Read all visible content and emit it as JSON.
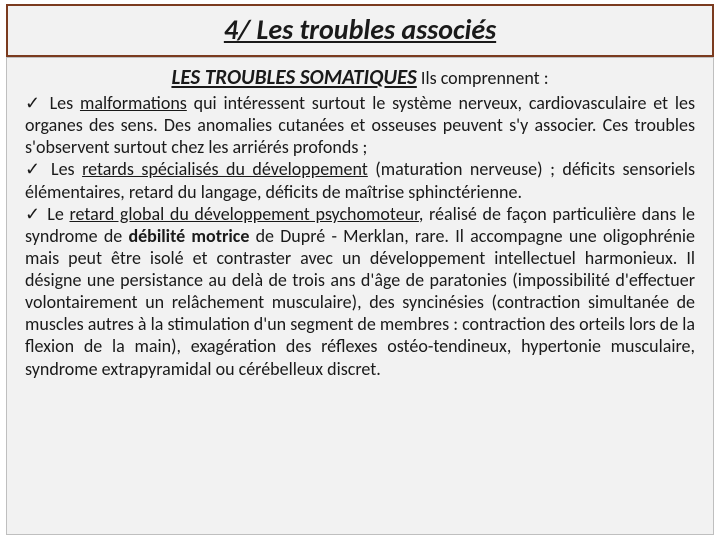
{
  "colors": {
    "title_border": "#7b3b1f",
    "box_bg": "#f2f2f2",
    "content_border": "#bfbfbf",
    "text": "#1a1a1a"
  },
  "title": "4/ Les troubles associés",
  "subtitle": "LES TROUBLES SOMATIQUES",
  "subtitle_tail": " Ils comprennent :",
  "check": "✓",
  "bullets": {
    "b1_lead": " Les ",
    "b1_term": "malformations",
    "b1_rest": " qui intéressent surtout le système nerveux, cardiovasculaire et les organes des sens. Des anomalies cutanées et osseuses peuvent s'y associer. Ces troubles s'observent surtout chez les arriérés profonds ;",
    "b2_lead": " Les ",
    "b2_term": "retards spécialisés du développement",
    "b2_rest": " (maturation nerveuse) ; déficits sensoriels élémentaires, retard du langage, déficits de maîtrise sphinctérienne.",
    "b3_lead": " Le ",
    "b3_term": "retard global du développement psychomoteur",
    "b3_rest_a": ", réalisé de façon particulière dans le syndrome de ",
    "b3_bold": "débilité motrice",
    "b3_rest_b": " de Dupré - Merklan, rare. Il accompagne une oligophrénie mais peut être isolé et contraster avec un développement intellectuel harmonieux. Il désigne une persistance au delà de trois ans d'âge de paratonies (impossibilité d'effectuer volontairement un relâchement musculaire), des syncinésies (contraction simultanée de muscles autres à la stimulation d'un segment de membres : contraction des orteils lors de la flexion de la main), exagération des réflexes ostéo-tendineux, hypertonie musculaire, syndrome extrapyramidal ou cérébelleux discret."
  }
}
